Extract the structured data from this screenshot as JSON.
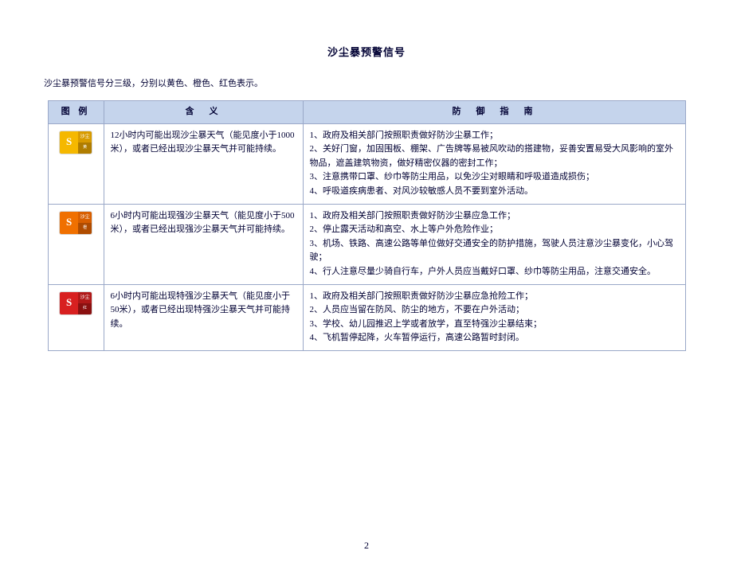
{
  "title": "沙尘暴预警信号",
  "intro": "沙尘暴预警信号分三级，分别以黄色、橙色、红色表示。",
  "headers": {
    "icon": "图 例",
    "meaning": "含　义",
    "guide": "防　御　指　南"
  },
  "rows": [
    {
      "icon_class": "yellow",
      "icon_glyph": "S",
      "icon_label_top": "沙尘",
      "icon_label_bot": "黄",
      "meaning": "12小时内可能出现沙尘暴天气（能见度小于1000米），或者已经出现沙尘暴天气并可能持续。",
      "guides": [
        "1、政府及相关部门按照职责做好防沙尘暴工作；",
        "2、关好门窗，加固围板、棚架、广告牌等易被风吹动的搭建物，妥善安置易受大风影响的室外物品，遮盖建筑物资，做好精密仪器的密封工作；",
        "3、注意携带口罩、纱巾等防尘用品，以免沙尘对眼睛和呼吸道造成损伤；",
        "4、呼吸道疾病患者、对风沙较敏感人员不要到室外活动。"
      ]
    },
    {
      "icon_class": "orange",
      "icon_glyph": "S",
      "icon_label_top": "沙尘",
      "icon_label_bot": "橙",
      "meaning": "6小时内可能出现强沙尘暴天气（能见度小于500米），或者已经出现强沙尘暴天气并可能持续。",
      "guides": [
        "1、政府及相关部门按照职责做好防沙尘暴应急工作；",
        "2、停止露天活动和高空、水上等户外危险作业；",
        "3、机场、铁路、高速公路等单位做好交通安全的防护措施，驾驶人员注意沙尘暴变化，小心驾驶；",
        "4、行人注意尽量少骑自行车，户外人员应当戴好口罩、纱巾等防尘用品，注意交通安全。"
      ]
    },
    {
      "icon_class": "red",
      "icon_glyph": "S",
      "icon_label_top": "沙尘",
      "icon_label_bot": "红",
      "meaning": "6小时内可能出现特强沙尘暴天气（能见度小于50米），或者已经出现特强沙尘暴天气并可能持续。",
      "guides": [
        "1、政府及相关部门按照职责做好防沙尘暴应急抢险工作；",
        "2、人员应当留在防风、防尘的地方，不要在户外活动；",
        "3、学校、幼儿园推迟上学或者放学，直至特强沙尘暴结束；",
        "4、飞机暂停起降，火车暂停运行，高速公路暂时封闭。"
      ]
    }
  ],
  "page_number": "2",
  "colors": {
    "header_bg": "#c5d4ec",
    "border": "#9aa8c8",
    "text": "#000033"
  }
}
